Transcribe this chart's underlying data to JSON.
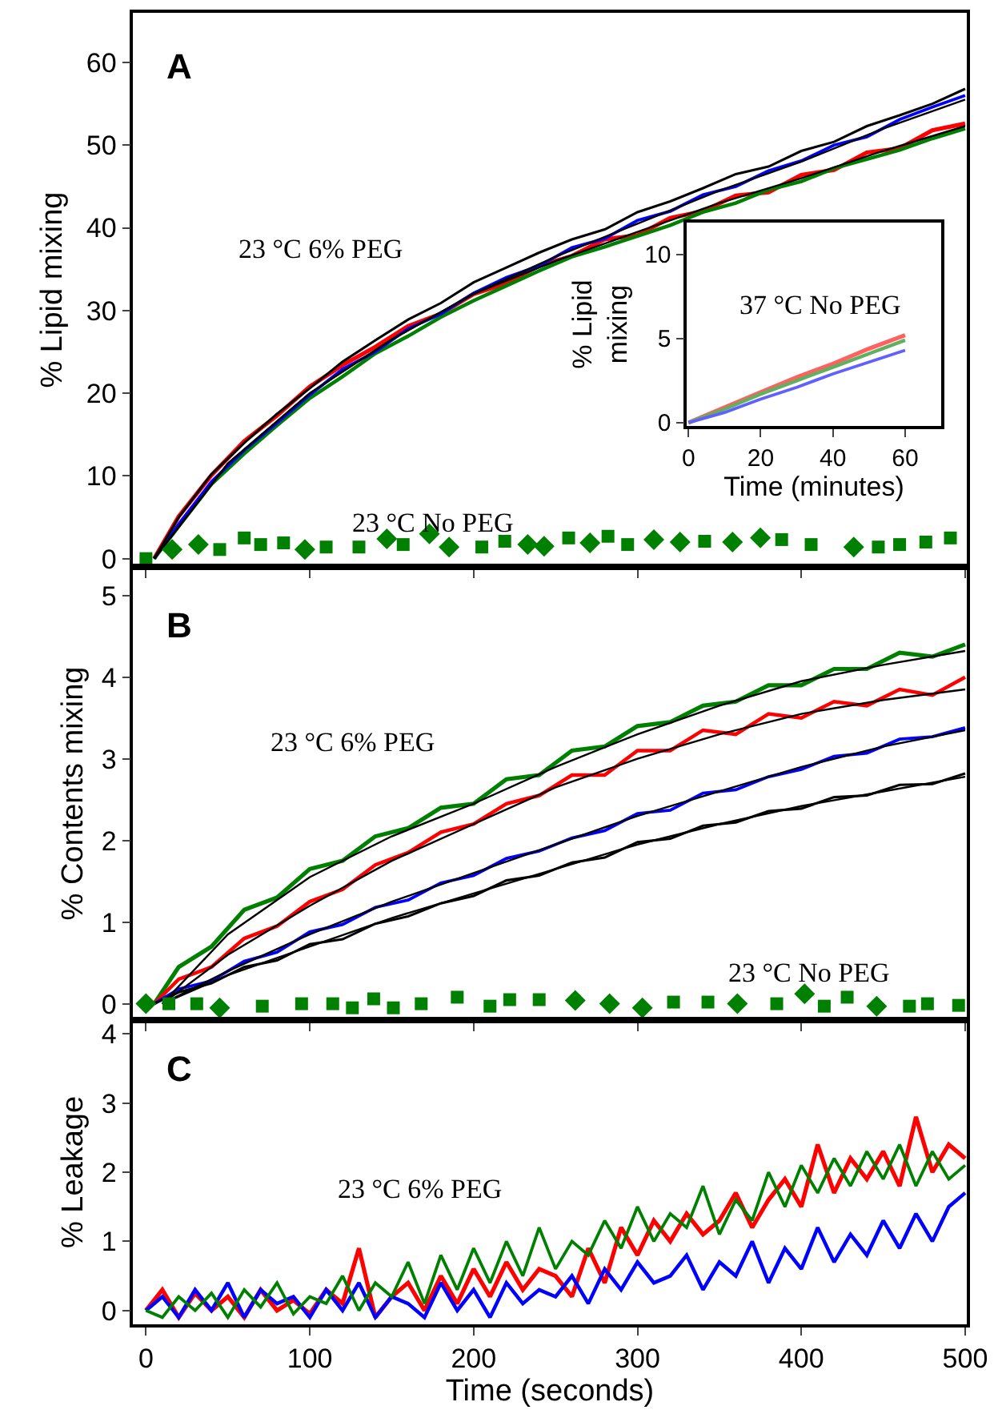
{
  "chart_data": [
    {
      "type": "line",
      "ylabel": "% Lipid mixing",
      "xlim": [
        -8,
        501
      ],
      "ylim": [
        -1,
        66
      ],
      "xticks": [
        0,
        100,
        200,
        300,
        400,
        500
      ],
      "yticks": [
        0,
        10,
        20,
        30,
        40,
        50,
        60
      ],
      "tick_labels": "y",
      "grid": false,
      "annotations": [
        "A",
        "23 °C 6% PEG",
        "23 °C No PEG"
      ],
      "x": [
        5,
        20,
        40,
        60,
        80,
        100,
        120,
        140,
        160,
        180,
        200,
        220,
        240,
        260,
        280,
        300,
        320,
        340,
        360,
        380,
        400,
        420,
        440,
        460,
        480,
        500
      ],
      "series": [
        {
          "color": "#ff0000",
          "values": [
            0,
            5.1,
            10.1,
            14.2,
            17.3,
            20.8,
            23.4,
            25.6,
            28.1,
            29.6,
            32.0,
            33.3,
            35.4,
            36.6,
            38.6,
            39.1,
            41.2,
            42.0,
            43.9,
            44.3,
            46.4,
            47.0,
            49.1,
            49.6,
            51.8,
            52.6
          ]
        },
        {
          "color": "#008000",
          "values": [
            0,
            3.9,
            9.0,
            12.7,
            16.1,
            19.4,
            22.0,
            24.8,
            26.9,
            29.2,
            31.2,
            33.0,
            34.8,
            36.5,
            37.7,
            39.0,
            40.3,
            41.9,
            43.0,
            44.6,
            45.6,
            47.2,
            48.3,
            49.4,
            50.8,
            52.0
          ]
        },
        {
          "color": "#0000ff",
          "values": [
            0,
            4.2,
            9.3,
            13.1,
            16.4,
            19.8,
            22.9,
            25.0,
            27.8,
            29.6,
            32.1,
            34.0,
            35.4,
            37.6,
            38.7,
            40.9,
            42.0,
            44.0,
            45.0,
            46.9,
            48.1,
            50.0,
            51.0,
            53.1,
            54.6,
            56.0
          ]
        },
        {
          "color": "#000000",
          "values": [
            0,
            5.0,
            10.2,
            14.0,
            17.5,
            20.6,
            23.8,
            26.4,
            28.9,
            30.9,
            33.4,
            35.2,
            37.0,
            38.6,
            39.8,
            41.9,
            43.2,
            44.8,
            46.5,
            47.4,
            49.3,
            50.4,
            52.3,
            53.6,
            55.0,
            56.8
          ]
        },
        {
          "color": "#000000",
          "x": [
            5,
            50,
            100,
            150,
            200,
            250,
            300,
            350,
            400,
            450,
            500
          ],
          "values": [
            0,
            11.5,
            20,
            26.5,
            32,
            36.5,
            40.5,
            44.5,
            48,
            52,
            55.5
          ]
        },
        {
          "color": "#000000",
          "x": [
            5,
            50,
            100,
            150,
            200,
            250,
            300,
            350,
            400,
            450,
            500
          ],
          "values": [
            0,
            11.5,
            20,
            26.5,
            32,
            36,
            39.5,
            43,
            46,
            49.3,
            52.3
          ]
        },
        {
          "type": "scatter",
          "marker": "square",
          "color": "#008000",
          "x": [
            0,
            45,
            60,
            70,
            84,
            110,
            130,
            157,
            205,
            219,
            258,
            282,
            294,
            341,
            388,
            406,
            447,
            460,
            476,
            491
          ],
          "values": [
            0,
            1.1,
            2.5,
            1.7,
            1.9,
            1.4,
            1.4,
            1.7,
            1.4,
            2.1,
            2.5,
            2.7,
            1.7,
            2.1,
            2.3,
            1.7,
            1.4,
            1.7,
            2.0,
            2.5
          ]
        },
        {
          "type": "scatter",
          "marker": "diamond",
          "color": "#008000",
          "x": [
            16,
            32,
            97,
            147,
            173,
            185,
            233,
            243,
            271,
            310,
            326,
            358,
            375,
            432
          ],
          "values": [
            1.1,
            1.7,
            1.1,
            2.4,
            3.0,
            1.4,
            1.7,
            1.5,
            1.9,
            2.3,
            2.0,
            2.0,
            2.5,
            1.4
          ]
        }
      ]
    },
    {
      "type": "line",
      "xlabel": "Time (minutes)",
      "ylabel": "% Lipid mixing",
      "xlim": [
        -0.5,
        70
      ],
      "ylim": [
        -0.2,
        11.9
      ],
      "xticks": [
        0,
        20,
        40,
        60
      ],
      "yticks": [
        0,
        5,
        10
      ],
      "grid": false,
      "annotations": [
        "37 °C No PEG"
      ],
      "x": [
        0,
        10,
        20,
        30,
        40,
        50,
        60
      ],
      "series": [
        {
          "color": "#ff6060",
          "values": [
            0,
            0.9,
            1.8,
            2.7,
            3.5,
            4.4,
            5.2
          ]
        },
        {
          "color": "#60b060",
          "values": [
            0,
            0.8,
            1.7,
            2.5,
            3.3,
            4.1,
            4.9
          ]
        },
        {
          "color": "#6060ff",
          "values": [
            0,
            0.6,
            1.4,
            2.1,
            2.9,
            3.6,
            4.3
          ]
        }
      ]
    },
    {
      "type": "line",
      "ylabel": "% Contents mixing",
      "xlim": [
        -8,
        501
      ],
      "ylim": [
        -0.2,
        5.35
      ],
      "xticks": [
        0,
        100,
        200,
        300,
        400,
        500
      ],
      "yticks": [
        0,
        1,
        2,
        3,
        4,
        5
      ],
      "tick_labels": "y",
      "grid": false,
      "annotations": [
        "B",
        "23 °C 6% PEG",
        "23 °C No PEG"
      ],
      "x": [
        5,
        20,
        40,
        60,
        80,
        100,
        120,
        140,
        160,
        180,
        200,
        220,
        240,
        260,
        280,
        300,
        320,
        340,
        360,
        380,
        400,
        420,
        440,
        460,
        480,
        500
      ],
      "series": [
        {
          "color": "#008000",
          "values": [
            0,
            0.45,
            0.7,
            1.15,
            1.3,
            1.65,
            1.75,
            2.05,
            2.15,
            2.4,
            2.45,
            2.75,
            2.8,
            3.1,
            3.15,
            3.4,
            3.45,
            3.65,
            3.7,
            3.9,
            3.9,
            4.1,
            4.1,
            4.3,
            4.25,
            4.4
          ]
        },
        {
          "color": "#ff0000",
          "values": [
            0,
            0.3,
            0.45,
            0.8,
            0.95,
            1.25,
            1.4,
            1.7,
            1.85,
            2.1,
            2.2,
            2.45,
            2.55,
            2.8,
            2.8,
            3.1,
            3.1,
            3.35,
            3.3,
            3.55,
            3.5,
            3.7,
            3.65,
            3.85,
            3.78,
            4.0
          ]
        },
        {
          "color": "#0000ff",
          "values": [
            0,
            0.18,
            0.28,
            0.52,
            0.63,
            0.88,
            0.97,
            1.18,
            1.27,
            1.48,
            1.57,
            1.78,
            1.87,
            2.03,
            2.12,
            2.33,
            2.37,
            2.58,
            2.62,
            2.78,
            2.87,
            3.03,
            3.07,
            3.24,
            3.27,
            3.38
          ]
        },
        {
          "color": "#000000",
          "values": [
            0,
            0.14,
            0.25,
            0.45,
            0.53,
            0.73,
            0.79,
            0.98,
            1.07,
            1.23,
            1.32,
            1.51,
            1.57,
            1.73,
            1.79,
            1.98,
            2.02,
            2.18,
            2.22,
            2.36,
            2.39,
            2.53,
            2.55,
            2.68,
            2.69,
            2.82
          ]
        },
        {
          "color": "#000000",
          "x": [
            10,
            50,
            100,
            150,
            200,
            250,
            300,
            350,
            400,
            450,
            500
          ],
          "values": [
            0,
            0.85,
            1.55,
            2.05,
            2.45,
            2.9,
            3.3,
            3.65,
            3.95,
            4.15,
            4.32
          ]
        },
        {
          "color": "#000000",
          "x": [
            10,
            50,
            100,
            150,
            200,
            250,
            300,
            350,
            400,
            450,
            500
          ],
          "values": [
            0,
            0.6,
            1.2,
            1.75,
            2.2,
            2.65,
            3.0,
            3.3,
            3.55,
            3.72,
            3.85
          ]
        },
        {
          "color": "#000000",
          "x": [
            10,
            50,
            100,
            150,
            200,
            250,
            300,
            350,
            400,
            450,
            500
          ],
          "values": [
            0,
            0.4,
            0.85,
            1.25,
            1.6,
            1.95,
            2.3,
            2.6,
            2.9,
            3.15,
            3.35
          ]
        },
        {
          "color": "#000000",
          "x": [
            10,
            50,
            100,
            150,
            200,
            250,
            300,
            350,
            400,
            450,
            500
          ],
          "values": [
            0,
            0.35,
            0.7,
            1.05,
            1.35,
            1.65,
            1.95,
            2.2,
            2.42,
            2.6,
            2.78
          ]
        },
        {
          "type": "scatter",
          "marker": "square",
          "color": "#008000",
          "x": [
            14,
            31,
            71,
            95,
            114,
            126,
            139,
            151,
            168,
            190,
            210,
            222,
            240,
            322,
            343,
            385,
            414,
            428,
            466,
            477,
            496
          ],
          "values": [
            0,
            0,
            -0.03,
            0,
            0,
            -0.05,
            0.06,
            -0.05,
            0,
            0.08,
            -0.03,
            0.05,
            0.05,
            0.02,
            0.02,
            0,
            -0.03,
            0.08,
            -0.03,
            0,
            -0.02
          ]
        },
        {
          "type": "scatter",
          "marker": "diamond",
          "color": "#008000",
          "x": [
            0,
            45,
            262,
            283,
            303,
            361,
            402,
            446
          ],
          "values": [
            0,
            -0.05,
            0.04,
            0,
            -0.05,
            0,
            0.12,
            -0.03
          ]
        }
      ]
    },
    {
      "type": "line",
      "xlabel": "Time (seconds)",
      "ylabel": "% Leakage",
      "xlim": [
        -8,
        501
      ],
      "ylim": [
        -0.2,
        4.2
      ],
      "xticks": [
        0,
        100,
        200,
        300,
        400,
        500
      ],
      "yticks": [
        0,
        1,
        2,
        3,
        4
      ],
      "grid": false,
      "annotations": [
        "C",
        "23 °C 6% PEG"
      ],
      "x": [
        0,
        10,
        20,
        30,
        40,
        50,
        60,
        70,
        80,
        90,
        100,
        110,
        120,
        130,
        140,
        150,
        160,
        170,
        180,
        190,
        200,
        210,
        220,
        230,
        240,
        250,
        260,
        270,
        280,
        290,
        300,
        310,
        320,
        330,
        340,
        350,
        360,
        370,
        380,
        390,
        400,
        410,
        420,
        430,
        440,
        450,
        460,
        470,
        480,
        490,
        500
      ],
      "series": [
        {
          "color": "#ff0000",
          "values": [
            0,
            0.3,
            -0.1,
            0.25,
            0,
            0.2,
            -0.1,
            0.3,
            0,
            0.15,
            -0.05,
            0.3,
            0.1,
            0.9,
            -0.1,
            0.2,
            0.4,
            0,
            0.5,
            0.1,
            0.6,
            0.2,
            0.7,
            0.3,
            0.6,
            0.5,
            0.2,
            0.9,
            0.4,
            1.2,
            0.8,
            1.3,
            1.0,
            1.4,
            1.1,
            1.3,
            1.7,
            1.2,
            1.6,
            1.9,
            1.5,
            2.4,
            1.7,
            2.2,
            1.9,
            2.3,
            1.8,
            2.8,
            2.0,
            2.4,
            2.2
          ]
        },
        {
          "color": "#0000ff",
          "values": [
            0,
            0.2,
            -0.1,
            0.3,
            0,
            0.4,
            -0.1,
            0.3,
            0.1,
            0.2,
            -0.1,
            0.3,
            0,
            0.4,
            -0.1,
            0.2,
            0.1,
            -0.1,
            0.4,
            0,
            0.3,
            -0.1,
            0.4,
            0.1,
            0.3,
            0.2,
            0.5,
            0.1,
            0.6,
            0.3,
            0.7,
            0.4,
            0.5,
            0.8,
            0.3,
            0.7,
            0.5,
            1.0,
            0.4,
            0.9,
            0.6,
            1.2,
            0.7,
            1.1,
            0.8,
            1.3,
            0.9,
            1.4,
            1.0,
            1.5,
            1.7
          ]
        },
        {
          "color": "#008000",
          "values": [
            0,
            -0.1,
            0.2,
            0,
            0.25,
            -0.1,
            0.3,
            0.05,
            0.4,
            -0.05,
            0.2,
            0.1,
            0.5,
            0,
            0.4,
            0.2,
            0.7,
            0.1,
            0.8,
            0.3,
            0.9,
            0.4,
            1.0,
            0.5,
            1.2,
            0.6,
            1.0,
            0.8,
            1.3,
            0.9,
            1.5,
            1.0,
            1.4,
            1.2,
            1.8,
            1.1,
            1.6,
            1.3,
            2.0,
            1.5,
            2.1,
            1.7,
            2.2,
            1.8,
            2.3,
            1.9,
            2.4,
            1.8,
            2.3,
            1.9,
            2.1
          ]
        }
      ]
    }
  ]
}
